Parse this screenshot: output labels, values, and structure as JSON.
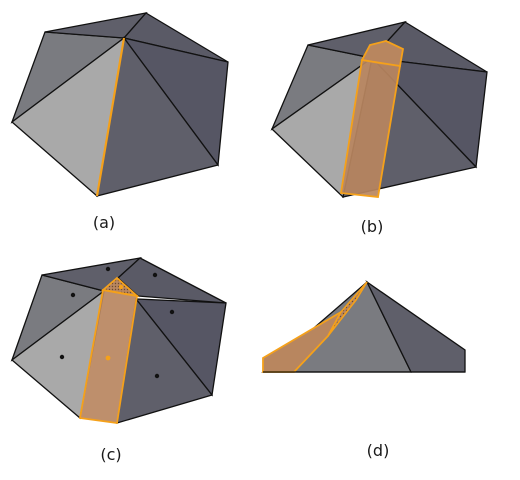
{
  "figure": {
    "panels": [
      {
        "id": "a",
        "label": "(a)"
      },
      {
        "id": "b",
        "label": "(b)"
      },
      {
        "id": "c",
        "label": "(c)"
      },
      {
        "id": "d",
        "label": "(d)"
      }
    ]
  },
  "colors": {
    "face_light": "#a9a9a9",
    "face_mid": "#7a7b80",
    "face_dark": "#5f5f6a",
    "face_darker": "#565664",
    "edge": "#111111",
    "selection_edge": "#f5a11a",
    "selection_fill": "#b8865f",
    "vertex_dot": "#111111",
    "selected_vertex_dot": "#f5a11a"
  }
}
